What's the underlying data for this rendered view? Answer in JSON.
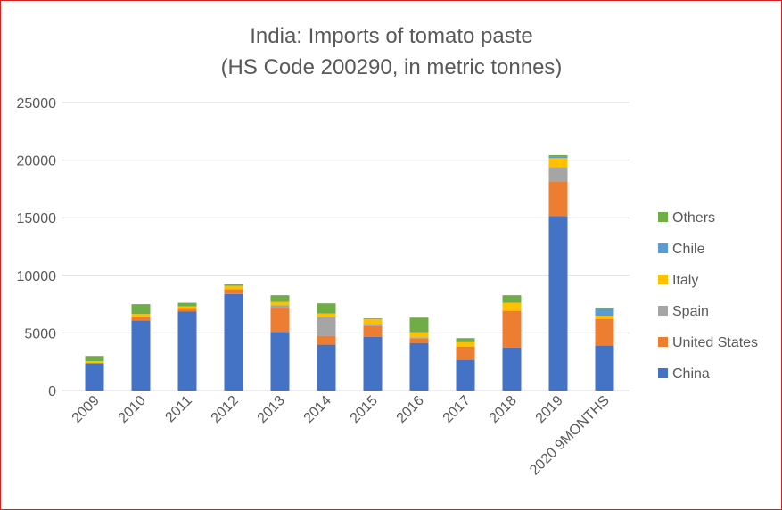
{
  "chart_data": {
    "type": "bar",
    "stacked": true,
    "title_lines": [
      "India: Imports of tomato paste",
      "(HS Code 200290, in metric tonnes)"
    ],
    "xlabel": "",
    "ylabel": "",
    "ylim": [
      0,
      25000
    ],
    "yticks": [
      0,
      5000,
      10000,
      15000,
      20000,
      25000
    ],
    "grid": true,
    "legend_position": "right",
    "categories": [
      "2009",
      "2010",
      "2011",
      "2012",
      "2013",
      "2014",
      "2015",
      "2016",
      "2017",
      "2018",
      "2019",
      "2020  9MONTHS"
    ],
    "series": [
      {
        "name": "China",
        "color": "#4472C4",
        "values": [
          2350,
          6070,
          6850,
          8370,
          5090,
          3980,
          4670,
          4130,
          2660,
          3740,
          15140,
          3900
        ]
      },
      {
        "name": "United States",
        "color": "#ED7D31",
        "values": [
          50,
          310,
          230,
          410,
          2060,
          770,
          930,
          390,
          1160,
          3180,
          3020,
          2320
        ]
      },
      {
        "name": "Spain",
        "color": "#A5A5A5",
        "values": [
          0,
          0,
          0,
          0,
          240,
          1630,
          160,
          100,
          0,
          0,
          1240,
          0
        ]
      },
      {
        "name": "Italy",
        "color": "#FFC000",
        "values": [
          150,
          260,
          230,
          310,
          310,
          310,
          420,
          440,
          370,
          700,
          780,
          270
        ]
      },
      {
        "name": "Chile",
        "color": "#5B9BD5",
        "values": [
          0,
          0,
          0,
          0,
          0,
          0,
          0,
          0,
          0,
          0,
          130,
          590
        ]
      },
      {
        "name": "Others",
        "color": "#70AD47",
        "values": [
          450,
          860,
          310,
          130,
          570,
          880,
          80,
          1270,
          360,
          650,
          130,
          120
        ]
      }
    ]
  }
}
